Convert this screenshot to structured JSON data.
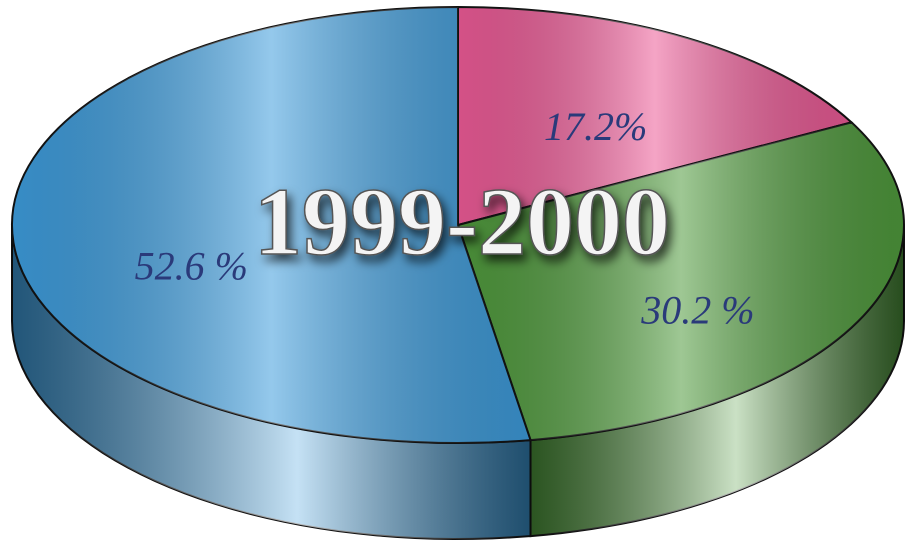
{
  "chart_data": {
    "type": "pie",
    "title": "1999-2000",
    "values": [
      17.2,
      30.2,
      52.6
    ],
    "value_labels": [
      "17.2%",
      "30.2 %",
      "52.6 %"
    ],
    "colors": [
      "#ec5a96",
      "#4f9a3c",
      "#3d9cdc"
    ]
  }
}
